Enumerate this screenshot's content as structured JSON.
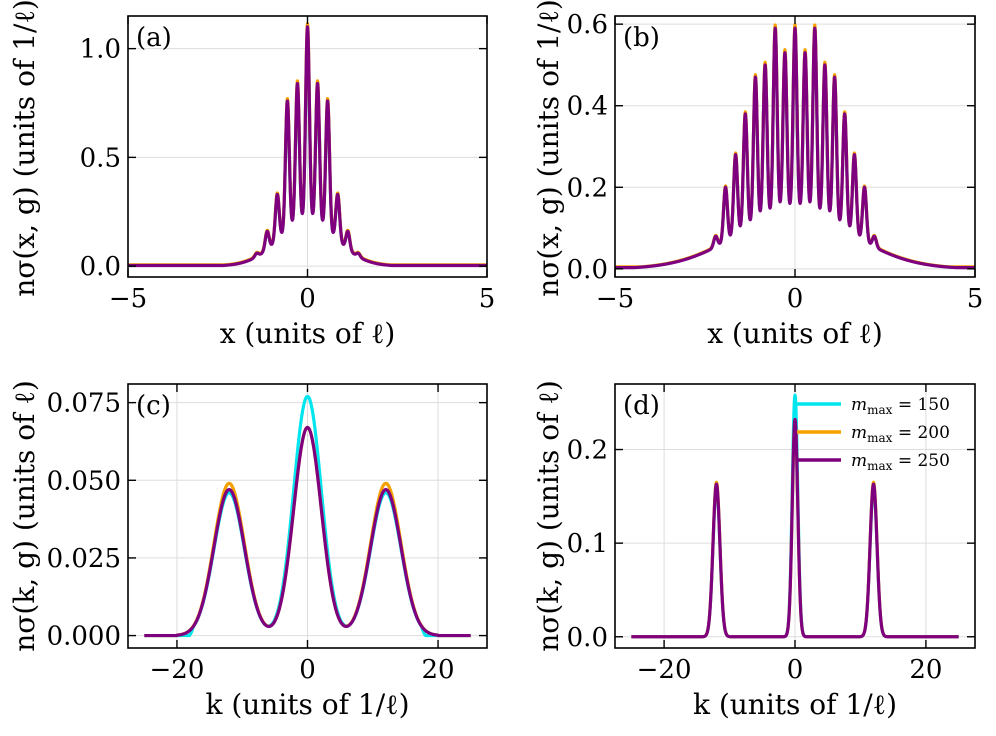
{
  "chart_data": [
    {
      "panel": "(a)",
      "type": "line",
      "xlabel": "x (units of ℓ)",
      "ylabel": "nσ(x, g) (units of 1/ℓ)",
      "xlim": [
        -5,
        5
      ],
      "ylim": [
        -0.05,
        1.15
      ],
      "xticks": [
        -5,
        0,
        5
      ],
      "yticks": [
        0.0,
        0.5,
        1.0
      ],
      "xtick_labels": [
        "−5",
        "0",
        "5"
      ],
      "ytick_labels": [
        "0.0",
        "0.5",
        "1.0"
      ],
      "model": {
        "kind": "oscillating-peaks",
        "peaks": [
          0.0,
          0.28,
          -0.28,
          0.56,
          -0.56,
          0.84,
          -0.84,
          1.12,
          -1.12,
          1.4,
          -1.4
        ],
        "peak_heights": [
          1.1,
          0.84,
          0.84,
          0.76,
          0.76,
          0.33,
          0.33,
          0.16,
          0.16,
          0.06,
          0.06
        ],
        "valley_floor": 0.22,
        "envelope_width": 0.85
      },
      "series": [
        {
          "name": "m_max = 150",
          "color": "#00e5ee",
          "height_scale": 0.97,
          "tail_offset": 0.003
        },
        {
          "name": "m_max = 200",
          "color": "#f5a000",
          "height_scale": 1.01,
          "tail_offset": 0.006
        },
        {
          "name": "m_max = 250",
          "color": "#7f007f",
          "height_scale": 1.0,
          "tail_offset": 0.0
        }
      ]
    },
    {
      "panel": "(b)",
      "type": "line",
      "xlabel": "x (units of ℓ)",
      "ylabel": "nσ(x, g) (units of 1/ℓ)",
      "xlim": [
        -5,
        5
      ],
      "ylim": [
        -0.02,
        0.62
      ],
      "xticks": [
        -5,
        0,
        5
      ],
      "yticks": [
        0.0,
        0.2,
        0.4,
        0.6
      ],
      "xtick_labels": [
        "−5",
        "0",
        "5"
      ],
      "ytick_labels": [
        "0.0",
        "0.2",
        "0.4",
        "0.6"
      ],
      "model": {
        "kind": "oscillating-peaks",
        "peaks": [
          -0.55,
          0.0,
          0.55,
          -0.28,
          0.28,
          -0.83,
          0.83,
          -1.1,
          1.1,
          -1.38,
          1.38,
          -1.65,
          1.65,
          -1.93,
          1.93,
          -2.2,
          2.2,
          -2.48,
          2.48
        ],
        "peak_heights": [
          0.59,
          0.59,
          0.59,
          0.53,
          0.53,
          0.5,
          0.5,
          0.47,
          0.47,
          0.38,
          0.38,
          0.28,
          0.28,
          0.2,
          0.2,
          0.08,
          0.08,
          0.03,
          0.03
        ],
        "valley_floor": 0.15,
        "envelope_width": 1.7
      },
      "series": [
        {
          "name": "m_max = 150",
          "color": "#00e5ee",
          "height_scale": 0.99,
          "tail_offset": 0.002
        },
        {
          "name": "m_max = 200",
          "color": "#f5a000",
          "height_scale": 1.01,
          "tail_offset": 0.004
        },
        {
          "name": "m_max = 250",
          "color": "#7f007f",
          "height_scale": 1.0,
          "tail_offset": 0.0
        }
      ]
    },
    {
      "panel": "(c)",
      "type": "line",
      "xlabel": "k (units of 1/ℓ)",
      "ylabel": "nσ(k, g) (units of ℓ)",
      "xlim": [
        -27.5,
        27.5
      ],
      "ylim": [
        -0.004,
        0.081
      ],
      "xticks": [
        -20,
        0,
        20
      ],
      "yticks": [
        0.0,
        0.025,
        0.05,
        0.075
      ],
      "xtick_labels": [
        "−20",
        "0",
        "20"
      ],
      "ytick_labels": [
        "0.000",
        "0.025",
        "0.050",
        "0.075"
      ],
      "model": {
        "kind": "three-peaks",
        "centers": [
          -12,
          0,
          12
        ],
        "widths": [
          3.3,
          3.0,
          3.3
        ],
        "support": 20,
        "x_range": [
          -25,
          25
        ]
      },
      "series": [
        {
          "name": "m_max = 150",
          "color": "#00e5ee",
          "heights": [
            0.046,
            0.077,
            0.046
          ],
          "edge_step": 17.5
        },
        {
          "name": "m_max = 200",
          "color": "#f5a000",
          "heights": [
            0.049,
            0.067,
            0.049
          ],
          "edge_step": 20
        },
        {
          "name": "m_max = 250",
          "color": "#7f007f",
          "heights": [
            0.047,
            0.067,
            0.047
          ],
          "edge_step": 20
        }
      ]
    },
    {
      "panel": "(d)",
      "type": "line",
      "xlabel": "k (units of 1/ℓ)",
      "ylabel": "nσ(k, g) (units of ℓ)",
      "xlim": [
        -27.5,
        27.5
      ],
      "ylim": [
        -0.012,
        0.27
      ],
      "xticks": [
        -20,
        0,
        20
      ],
      "yticks": [
        0.0,
        0.1,
        0.2
      ],
      "xtick_labels": [
        "−20",
        "0",
        "20"
      ],
      "ytick_labels": [
        "0.0",
        "0.1",
        "0.2"
      ],
      "model": {
        "kind": "three-peaks",
        "centers": [
          -12,
          0,
          12
        ],
        "widths": [
          0.75,
          0.6,
          0.75
        ],
        "support": 20,
        "x_range": [
          -25,
          25
        ]
      },
      "series": [
        {
          "name": "m_max = 150",
          "color": "#00e5ee",
          "heights": [
            0.16,
            0.258,
            0.16
          ],
          "edge_step": 17.5
        },
        {
          "name": "m_max = 200",
          "color": "#f5a000",
          "heights": [
            0.165,
            0.232,
            0.165
          ],
          "edge_step": 20
        },
        {
          "name": "m_max = 250",
          "color": "#7f007f",
          "heights": [
            0.163,
            0.232,
            0.163
          ],
          "edge_step": 20
        }
      ],
      "legend": {
        "placement": "upper-right",
        "entries": [
          {
            "prefix": "m",
            "sub": "max",
            "suffix": " = 150",
            "color": "#00e5ee"
          },
          {
            "prefix": "m",
            "sub": "max",
            "suffix": " = 200",
            "color": "#f5a000"
          },
          {
            "prefix": "m",
            "sub": "max",
            "suffix": " = 250",
            "color": "#7f007f"
          }
        ]
      }
    }
  ]
}
